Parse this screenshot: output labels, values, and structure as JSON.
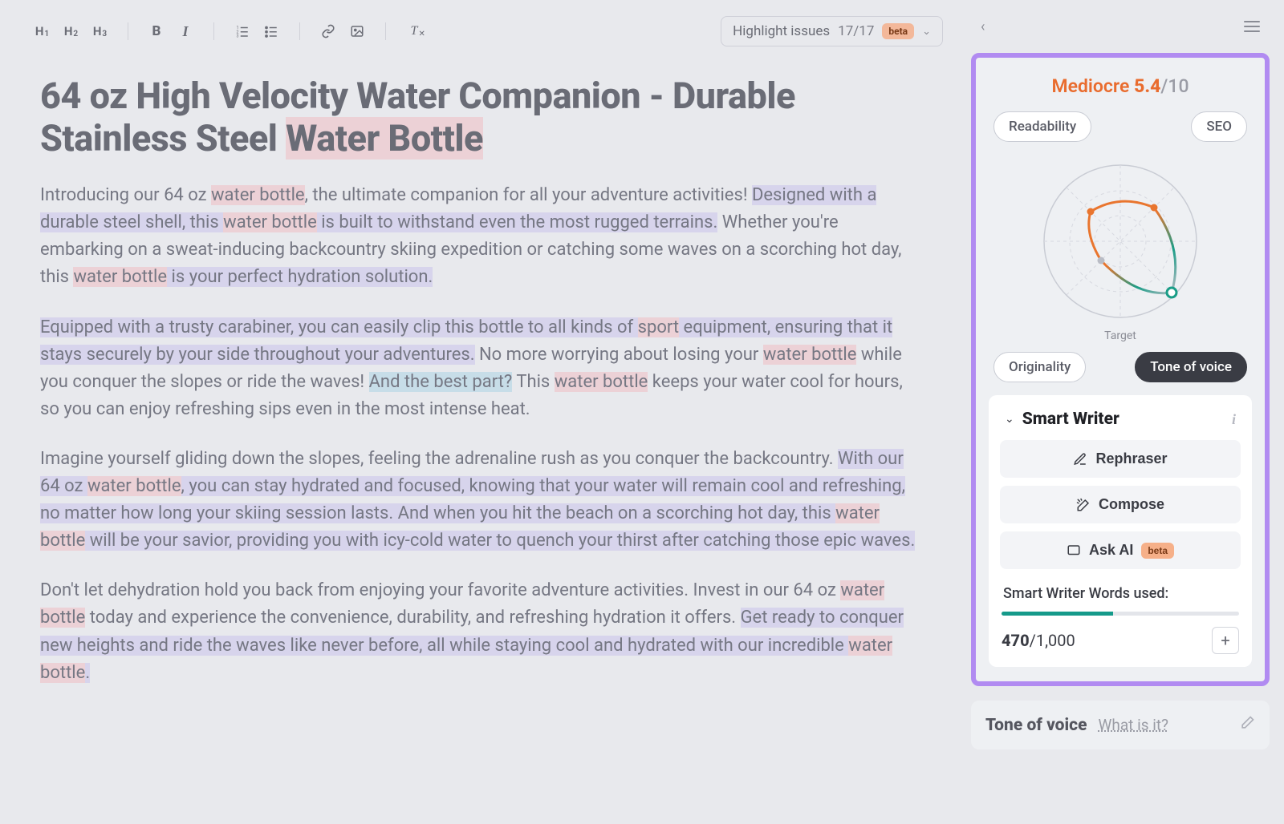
{
  "toolbar": {
    "highlight_label": "Highlight issues",
    "highlight_count": "17/17",
    "beta_badge": "beta"
  },
  "document": {
    "title_a": "64 oz High Velocity Water Companion - Durable Stainless Steel ",
    "title_hl": "Water Bottle",
    "p1": {
      "a": "Introducing our 64 oz ",
      "b": "water bottle",
      "c": ", the ultimate companion for all your adventure activities! ",
      "d": "Designed with a durable steel shell, this ",
      "e": "water bottle",
      "f": " is built to withstand even the most rugged terrains.",
      "g": " Whether you're embarking on a sweat-inducing backcountry skiing expedition or catching some waves on a scorching hot day, this ",
      "h": "water bottle",
      "i": " is your perfect hydration solution."
    },
    "p2": {
      "a": "Equipped with a trusty carabiner, you can easily clip this bottle to all kinds of ",
      "b": "sport",
      "c": " equipment, ensuring that it stays securely by your side throughout your adventures.",
      "d": " No more worrying about losing your ",
      "e": "water bottle",
      "f": " while you conquer the slopes or ride the waves! ",
      "g": "And the best part?",
      "h": " This ",
      "i": "water bottle",
      "j": " keeps your water cool for hours, so you can enjoy refreshing sips even in the most intense heat."
    },
    "p3": {
      "a": "Imagine yourself gliding down the slopes, feeling the adrenaline rush as you conquer the backcountry. ",
      "b": "With our 64 oz ",
      "c": "water bottle",
      "d": ", you can stay hydrated and focused, knowing that your water will remain cool and refreshing, no matter how long your skiing session lasts.",
      "e": " And when you hit the beach on a scorching hot day, this ",
      "f": "water bottle",
      "g": " will be your savior, providing you with icy-cold water to quench your thirst after catching those epic waves."
    },
    "p4": {
      "a": "Don't let dehydration hold you back from enjoying your favorite adventure activities. Invest in our 64 oz ",
      "b": "water bottle",
      "c": " today and experience the convenience, durability, and refreshing hydration it offers. ",
      "d": "Get ready to conquer new heights and ride the waves like never before, all while staying cool and hydrated with our incredible ",
      "e": "water bottle",
      "f": "."
    }
  },
  "score": {
    "word": "Mediocre",
    "value": "5.4",
    "max": "/10",
    "pills": {
      "readability": "Readability",
      "seo": "SEO",
      "originality": "Originality",
      "tone": "Tone of voice"
    },
    "target_label": "Target",
    "radar": {
      "type": "radar",
      "background_color": "#eef0f3",
      "ring_color": "#c9ccd4",
      "spoke_color": "#d7d9e0",
      "colors": {
        "orange": "#e9752e",
        "green": "#1a9d87",
        "gray": "#b9bcc5"
      },
      "axes": 4,
      "points": [
        {
          "axis": "readability",
          "r": 0.55,
          "color": "#e9752e"
        },
        {
          "axis": "seo",
          "r": 0.62,
          "color": "#e9752e"
        },
        {
          "axis": "tone",
          "r": 0.95,
          "color": "#1a9d87"
        },
        {
          "axis": "originality",
          "r": 0.35,
          "color": "#b9bcc5"
        }
      ]
    }
  },
  "smart": {
    "title": "Smart Writer",
    "rephraser": "Rephraser",
    "compose": "Compose",
    "ask_ai": "Ask AI",
    "ask_ai_badge": "beta",
    "words_label": "Smart Writer Words used:",
    "used": "470",
    "max": "/1,000",
    "progress_pct": 47,
    "bar_fill_color": "#159a8a",
    "bar_bg_color": "#e3e5ea"
  },
  "tov": {
    "title": "Tone of voice",
    "link": "What is it?"
  },
  "colors": {
    "accent_purple": "#b18bf1",
    "accent_orange": "#e96c2e",
    "hl_lavender": "#d7d4ec",
    "hl_pink": "#ecd1d6",
    "hl_blue": "#c7dde8"
  }
}
